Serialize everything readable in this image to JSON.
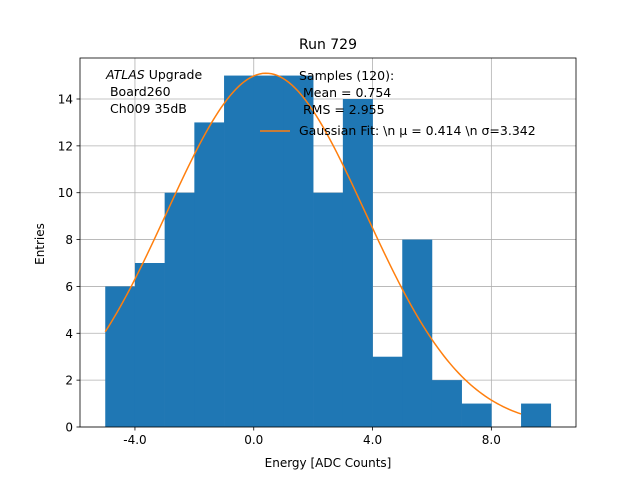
{
  "chart_data": {
    "type": "bar",
    "title": "Run 729",
    "xlabel": "Energy [ADC Counts]",
    "ylabel": "Entries",
    "xlim": [
      -5.85,
      10.85
    ],
    "ylim": [
      0,
      15.75
    ],
    "grid": true,
    "bar_color": "#1f77b4",
    "fit_color": "#ff7f0e",
    "x_ticks": [
      -4,
      0,
      4,
      8
    ],
    "x_tick_labels": [
      "-4.0",
      "0.0",
      "4.0",
      "8.0"
    ],
    "y_ticks": [
      0,
      2,
      4,
      6,
      8,
      10,
      12,
      14
    ],
    "y_tick_labels": [
      "0",
      "2",
      "4",
      "6",
      "8",
      "10",
      "12",
      "14"
    ],
    "bins": [
      {
        "x0": -5,
        "x1": -4,
        "count": 6
      },
      {
        "x0": -4,
        "x1": -3,
        "count": 7
      },
      {
        "x0": -3,
        "x1": -2,
        "count": 10
      },
      {
        "x0": -2,
        "x1": -1,
        "count": 13
      },
      {
        "x0": -1,
        "x1": 0,
        "count": 15
      },
      {
        "x0": 0,
        "x1": 1,
        "count": 15
      },
      {
        "x0": 1,
        "x1": 2,
        "count": 15
      },
      {
        "x0": 2,
        "x1": 3,
        "count": 10
      },
      {
        "x0": 3,
        "x1": 4,
        "count": 14
      },
      {
        "x0": 4,
        "x1": 5,
        "count": 3
      },
      {
        "x0": 5,
        "x1": 6,
        "count": 8
      },
      {
        "x0": 6,
        "x1": 7,
        "count": 2
      },
      {
        "x0": 7,
        "x1": 8,
        "count": 1
      },
      {
        "x0": 8,
        "x1": 9,
        "count": 0
      },
      {
        "x0": 9,
        "x1": 10,
        "count": 1
      }
    ],
    "fit": {
      "label": "Gaussian Fit: \\n $\\mu$ = 0.414 \\n $\\sigma$=3.342",
      "legend_text": "Gaussian Fit: \\n μ = 0.414 \\n σ=3.342",
      "mu": 0.414,
      "sigma": 3.342,
      "amplitude": 15.1,
      "x_range": [
        -5,
        9
      ]
    },
    "annotations": {
      "atlas_italic": "ATLAS",
      "atlas_rest": " Upgrade",
      "board": " Board260",
      "channel": " Ch009 35dB",
      "samples": "Samples (120):",
      "mean": " Mean = 0.754",
      "rms": " RMS = 2.955"
    },
    "legend_position": "upper-right"
  }
}
